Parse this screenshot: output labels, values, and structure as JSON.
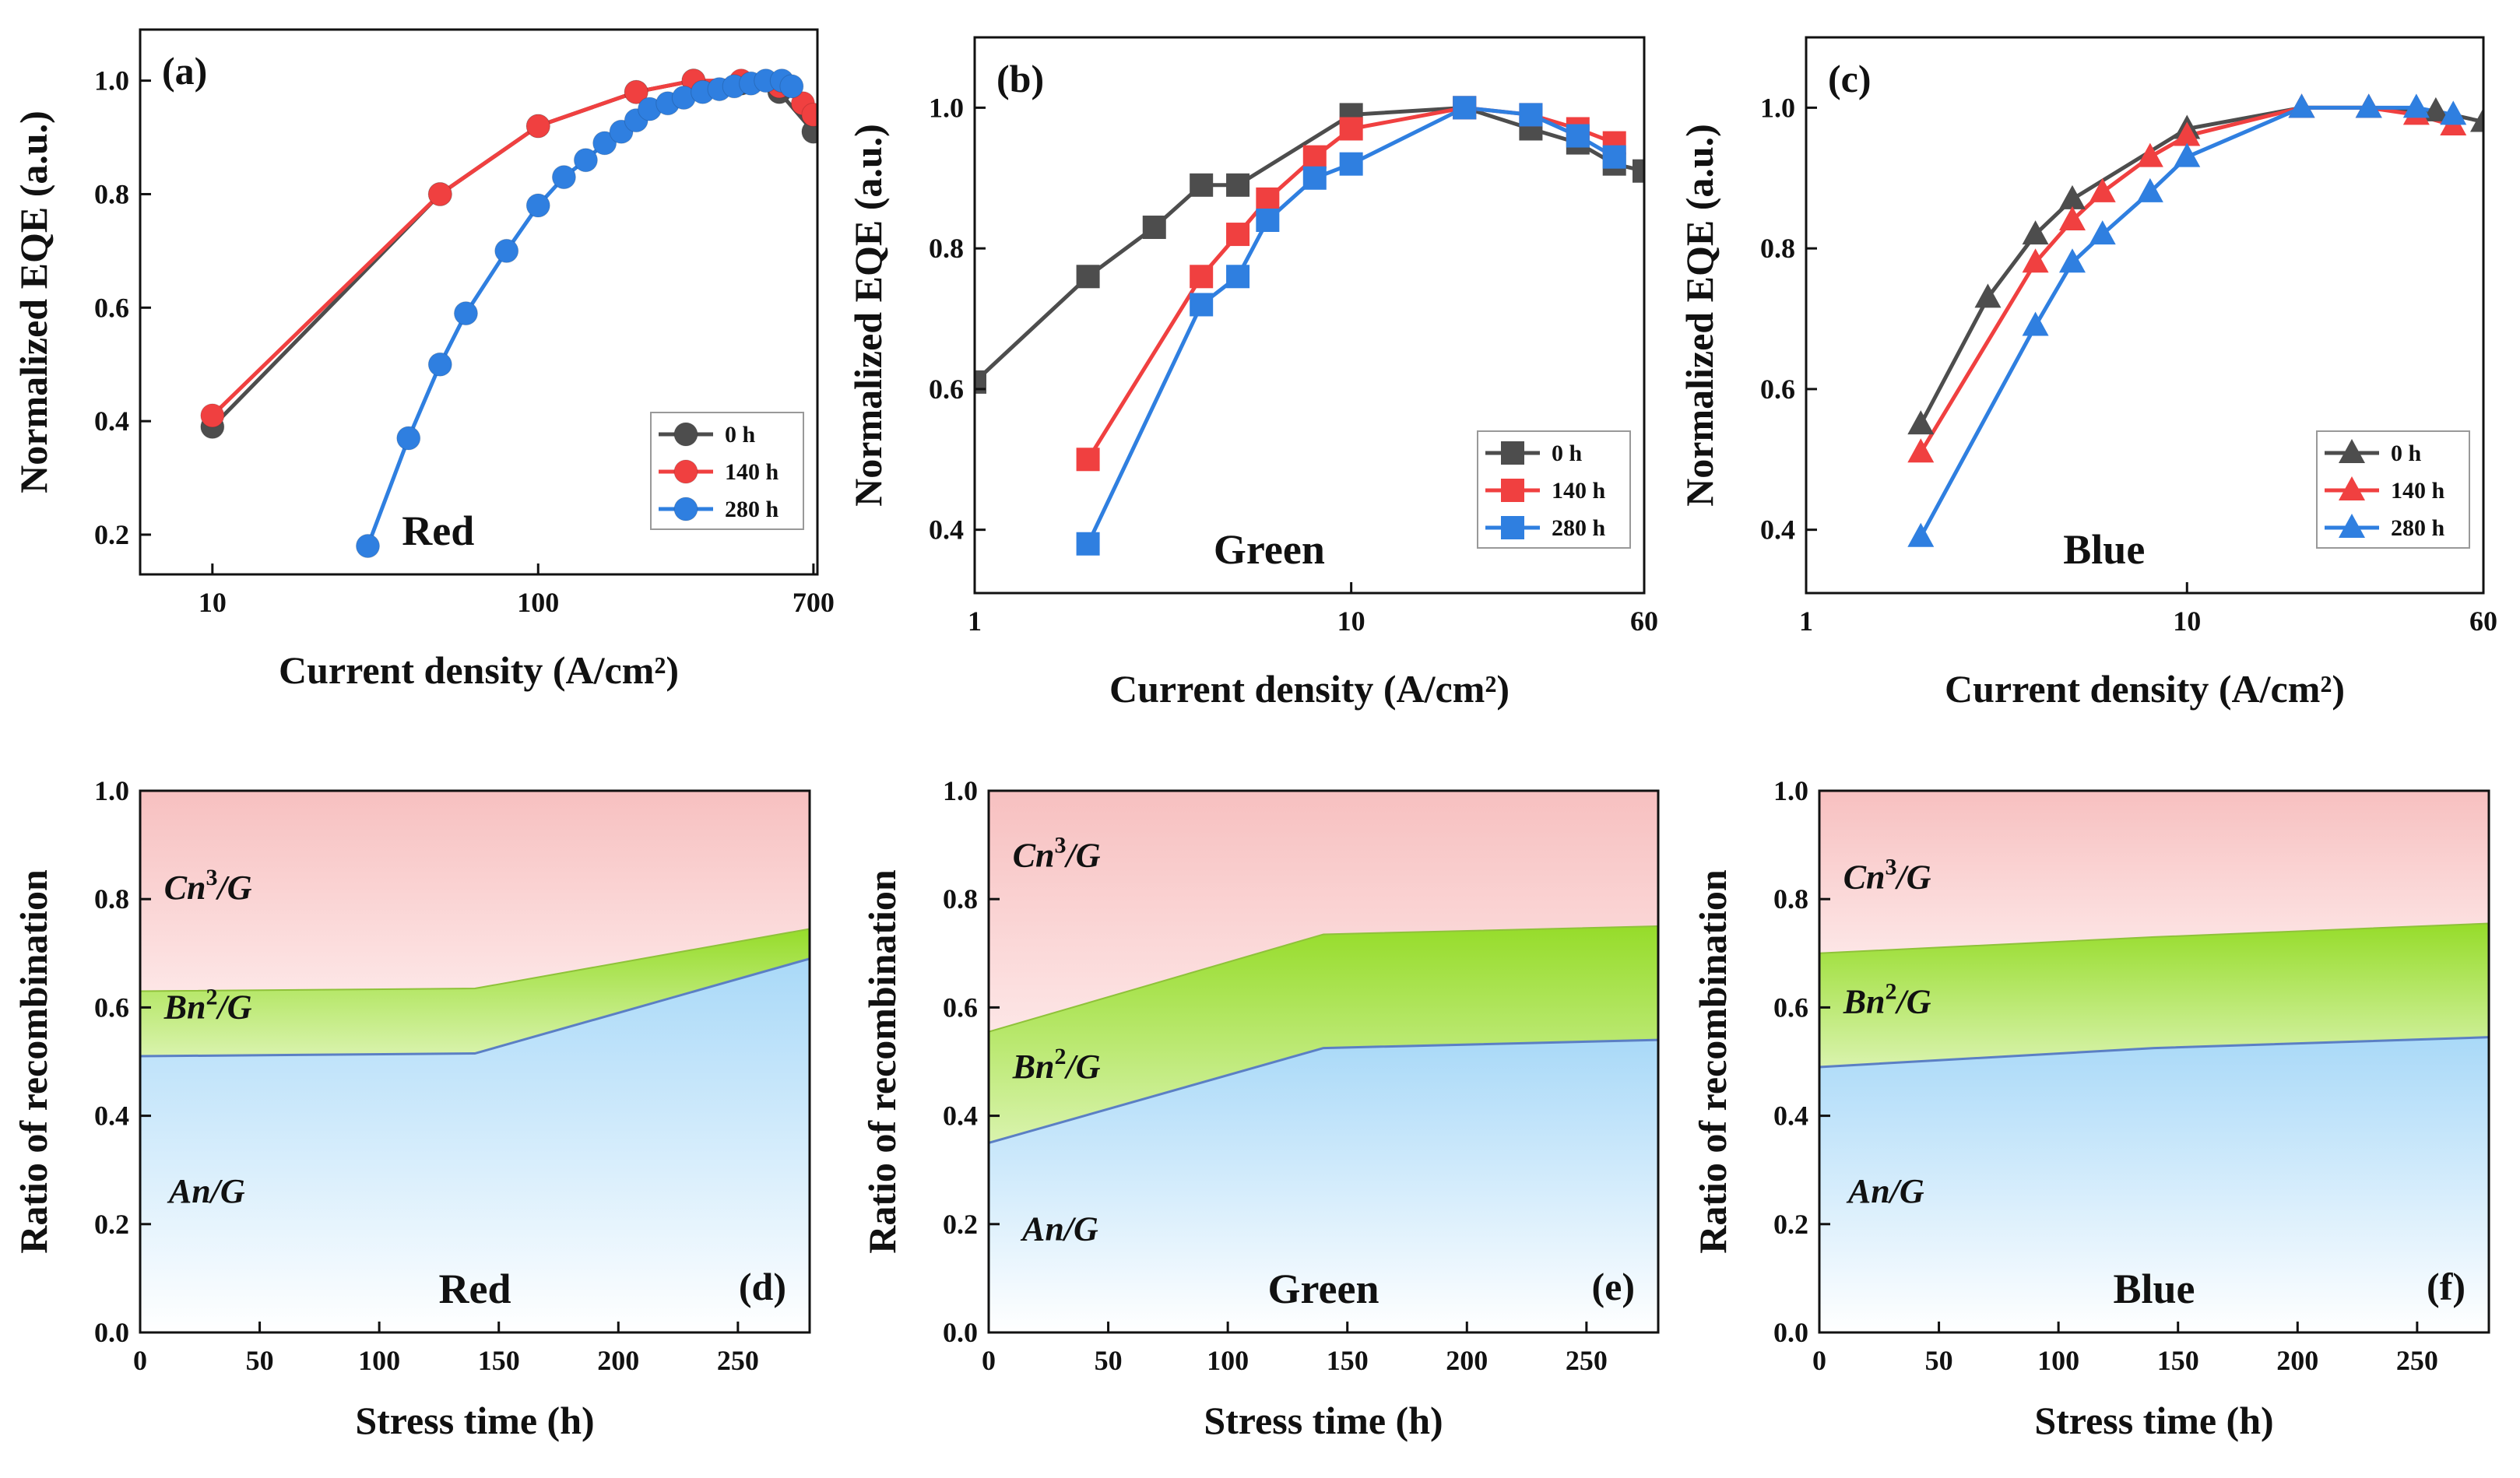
{
  "chart_data": [
    {
      "type": "line",
      "scale": "log",
      "panel_label": "(a)",
      "color_label": "Red",
      "xlabel": "Current density (A/cm²)",
      "ylabel": "Normalized EQE (a.u.)",
      "xlim": [
        6,
        720
      ],
      "ylim": [
        0.13,
        1.09
      ],
      "xticks": [
        10,
        100,
        700
      ],
      "xtick_labels": [
        "10",
        "100",
        "700"
      ],
      "yticks": [
        0.2,
        0.4,
        0.6,
        0.8,
        1.0
      ],
      "ytick_labels": [
        "0.2",
        "0.4",
        "0.6",
        "0.8",
        "1.0"
      ],
      "marker": "circle",
      "legend_position": "bottom-right",
      "series": [
        {
          "name": "0 h",
          "color": "#4d4d4d",
          "x": [
            10,
            50,
            100,
            200,
            300,
            420,
            550,
            700
          ],
          "y": [
            0.39,
            0.8,
            0.92,
            0.98,
            1.0,
            0.995,
            0.98,
            0.91
          ]
        },
        {
          "name": "140 h",
          "color": "#f04040",
          "x": [
            10,
            50,
            100,
            200,
            300,
            420,
            550,
            650,
            700
          ],
          "y": [
            0.41,
            0.8,
            0.92,
            0.98,
            1.0,
            1.0,
            0.99,
            0.96,
            0.94
          ]
        },
        {
          "name": "280 h",
          "color": "#2f7fe0",
          "x": [
            30,
            40,
            50,
            60,
            80,
            100,
            120,
            140,
            160,
            180,
            200,
            220,
            250,
            280,
            320,
            360,
            400,
            450,
            500,
            560,
            600
          ],
          "y": [
            0.18,
            0.37,
            0.5,
            0.59,
            0.7,
            0.78,
            0.83,
            0.86,
            0.89,
            0.91,
            0.93,
            0.95,
            0.96,
            0.97,
            0.98,
            0.985,
            0.99,
            0.995,
            1.0,
            1.0,
            0.99
          ]
        }
      ]
    },
    {
      "type": "line",
      "scale": "log",
      "panel_label": "(b)",
      "color_label": "Green",
      "xlabel": "Current density (A/cm²)",
      "ylabel": "Normalized EQE (a.u.)",
      "xlim": [
        1,
        60
      ],
      "ylim": [
        0.31,
        1.1
      ],
      "xticks": [
        1,
        10,
        60
      ],
      "xtick_labels": [
        "1",
        "10",
        "60"
      ],
      "yticks": [
        0.4,
        0.6,
        0.8,
        1.0
      ],
      "ytick_labels": [
        "0.4",
        "0.6",
        "0.8",
        "1.0"
      ],
      "marker": "square",
      "legend_position": "bottom-right",
      "series": [
        {
          "name": "0 h",
          "color": "#4d4d4d",
          "x": [
            1,
            2,
            3,
            4,
            5,
            10,
            20,
            30,
            40,
            50,
            60
          ],
          "y": [
            0.61,
            0.76,
            0.83,
            0.89,
            0.89,
            0.99,
            1.0,
            0.97,
            0.95,
            0.92,
            0.91
          ]
        },
        {
          "name": "140 h",
          "color": "#f04040",
          "x": [
            2,
            4,
            5,
            6,
            8,
            10,
            20,
            30,
            40,
            50
          ],
          "y": [
            0.5,
            0.76,
            0.82,
            0.87,
            0.93,
            0.97,
            1.0,
            0.99,
            0.97,
            0.95
          ]
        },
        {
          "name": "280 h",
          "color": "#2f7fe0",
          "x": [
            2,
            4,
            5,
            6,
            8,
            10,
            20,
            30,
            40,
            50
          ],
          "y": [
            0.38,
            0.72,
            0.76,
            0.84,
            0.9,
            0.92,
            1.0,
            0.99,
            0.96,
            0.93
          ]
        }
      ]
    },
    {
      "type": "line",
      "scale": "log",
      "panel_label": "(c)",
      "color_label": "Blue",
      "xlabel": "Current density (A/cm²)",
      "ylabel": "Normalized EQE (a.u.)",
      "xlim": [
        1,
        60
      ],
      "ylim": [
        0.31,
        1.1
      ],
      "xticks": [
        1,
        10,
        60
      ],
      "xtick_labels": [
        "1",
        "10",
        "60"
      ],
      "yticks": [
        0.4,
        0.6,
        0.8,
        1.0
      ],
      "ytick_labels": [
        "0.4",
        "0.6",
        "0.8",
        "1.0"
      ],
      "marker": "triangle",
      "legend_position": "bottom-right",
      "series": [
        {
          "name": "0 h",
          "color": "#4d4d4d",
          "x": [
            2,
            3,
            4,
            5,
            10,
            20,
            30,
            45,
            60
          ],
          "y": [
            0.55,
            0.73,
            0.82,
            0.87,
            0.97,
            1.0,
            1.0,
            0.995,
            0.98
          ]
        },
        {
          "name": "140 h",
          "color": "#f04040",
          "x": [
            2,
            4,
            5,
            6,
            8,
            10,
            20,
            30,
            40,
            50
          ],
          "y": [
            0.51,
            0.78,
            0.84,
            0.88,
            0.93,
            0.96,
            1.0,
            1.0,
            0.99,
            0.975
          ]
        },
        {
          "name": "280 h",
          "color": "#2f7fe0",
          "x": [
            2,
            4,
            5,
            6,
            8,
            10,
            20,
            30,
            40,
            50
          ],
          "y": [
            0.39,
            0.69,
            0.78,
            0.82,
            0.88,
            0.93,
            1.0,
            1.0,
            1.0,
            0.99
          ]
        }
      ]
    },
    {
      "type": "area",
      "panel_label": "(d)",
      "color_label": "Red",
      "xlabel": "Stress time (h)",
      "ylabel": "Ratio of recombination",
      "xlim": [
        0,
        280
      ],
      "ylim": [
        0,
        1.0
      ],
      "xticks": [
        0,
        50,
        100,
        150,
        200,
        250
      ],
      "xtick_labels": [
        "0",
        "50",
        "100",
        "150",
        "200",
        "250"
      ],
      "yticks": [
        0,
        0.2,
        0.4,
        0.6,
        0.8,
        1.0
      ],
      "ytick_labels": [
        "0.0",
        "0.2",
        "0.4",
        "0.6",
        "0.8",
        "1.0"
      ],
      "x": [
        0,
        140,
        280
      ],
      "boundary_A": [
        0.51,
        0.515,
        0.69
      ],
      "boundary_B": [
        0.63,
        0.635,
        0.745
      ],
      "regions": [
        {
          "name": "Cn3/G",
          "text": "Cn",
          "sup": "3",
          "tail": "/G",
          "label_x": 10,
          "label_y": 0.8
        },
        {
          "name": "Bn2/G",
          "text": "Bn",
          "sup": "2",
          "tail": "/G",
          "label_x": 10,
          "label_y": 0.58
        },
        {
          "name": "An/G",
          "text": "An",
          "sup": "",
          "tail": "/G",
          "label_x": 12,
          "label_y": 0.24
        }
      ],
      "colors": {
        "C": "#f7c3c3",
        "B": "#9ee03a",
        "A": "#b4def9",
        "boundary": "#5b7fc4"
      }
    },
    {
      "type": "area",
      "panel_label": "(e)",
      "color_label": "Green",
      "xlabel": "Stress time (h)",
      "ylabel": "Ratio of recombination",
      "xlim": [
        0,
        280
      ],
      "ylim": [
        0,
        1.0
      ],
      "xticks": [
        0,
        50,
        100,
        150,
        200,
        250
      ],
      "xtick_labels": [
        "0",
        "50",
        "100",
        "150",
        "200",
        "250"
      ],
      "yticks": [
        0,
        0.2,
        0.4,
        0.6,
        0.8,
        1.0
      ],
      "ytick_labels": [
        "0.0",
        "0.2",
        "0.4",
        "0.6",
        "0.8",
        "1.0"
      ],
      "x": [
        0,
        140,
        280
      ],
      "boundary_A": [
        0.35,
        0.525,
        0.54
      ],
      "boundary_B": [
        0.555,
        0.735,
        0.75
      ],
      "regions": [
        {
          "name": "Cn3/G",
          "text": "Cn",
          "sup": "3",
          "tail": "/G",
          "label_x": 10,
          "label_y": 0.86
        },
        {
          "name": "Bn2/G",
          "text": "Bn",
          "sup": "2",
          "tail": "/G",
          "label_x": 10,
          "label_y": 0.47
        },
        {
          "name": "An/G",
          "text": "An",
          "sup": "",
          "tail": "/G",
          "label_x": 14,
          "label_y": 0.17
        }
      ],
      "colors": {
        "C": "#f7c3c3",
        "B": "#9ee03a",
        "A": "#b4def9",
        "boundary": "#5b7fc4"
      }
    },
    {
      "type": "area",
      "panel_label": "(f)",
      "color_label": "Blue",
      "xlabel": "Stress time (h)",
      "ylabel": "Ratio of recombination",
      "xlim": [
        0,
        280
      ],
      "ylim": [
        0,
        1.0
      ],
      "xticks": [
        0,
        50,
        100,
        150,
        200,
        250
      ],
      "xtick_labels": [
        "0",
        "50",
        "100",
        "150",
        "200",
        "250"
      ],
      "yticks": [
        0,
        0.2,
        0.4,
        0.6,
        0.8,
        1.0
      ],
      "ytick_labels": [
        "0.0",
        "0.2",
        "0.4",
        "0.6",
        "0.8",
        "1.0"
      ],
      "x": [
        0,
        140,
        280
      ],
      "boundary_A": [
        0.49,
        0.525,
        0.545
      ],
      "boundary_B": [
        0.7,
        0.73,
        0.755
      ],
      "regions": [
        {
          "name": "Cn3/G",
          "text": "Cn",
          "sup": "3",
          "tail": "/G",
          "label_x": 10,
          "label_y": 0.82
        },
        {
          "name": "Bn2/G",
          "text": "Bn",
          "sup": "2",
          "tail": "/G",
          "label_x": 10,
          "label_y": 0.59
        },
        {
          "name": "An/G",
          "text": "An",
          "sup": "",
          "tail": "/G",
          "label_x": 12,
          "label_y": 0.24
        }
      ],
      "colors": {
        "C": "#f7c3c3",
        "B": "#9ee03a",
        "A": "#b4def9",
        "boundary": "#5b7fc4"
      }
    }
  ]
}
